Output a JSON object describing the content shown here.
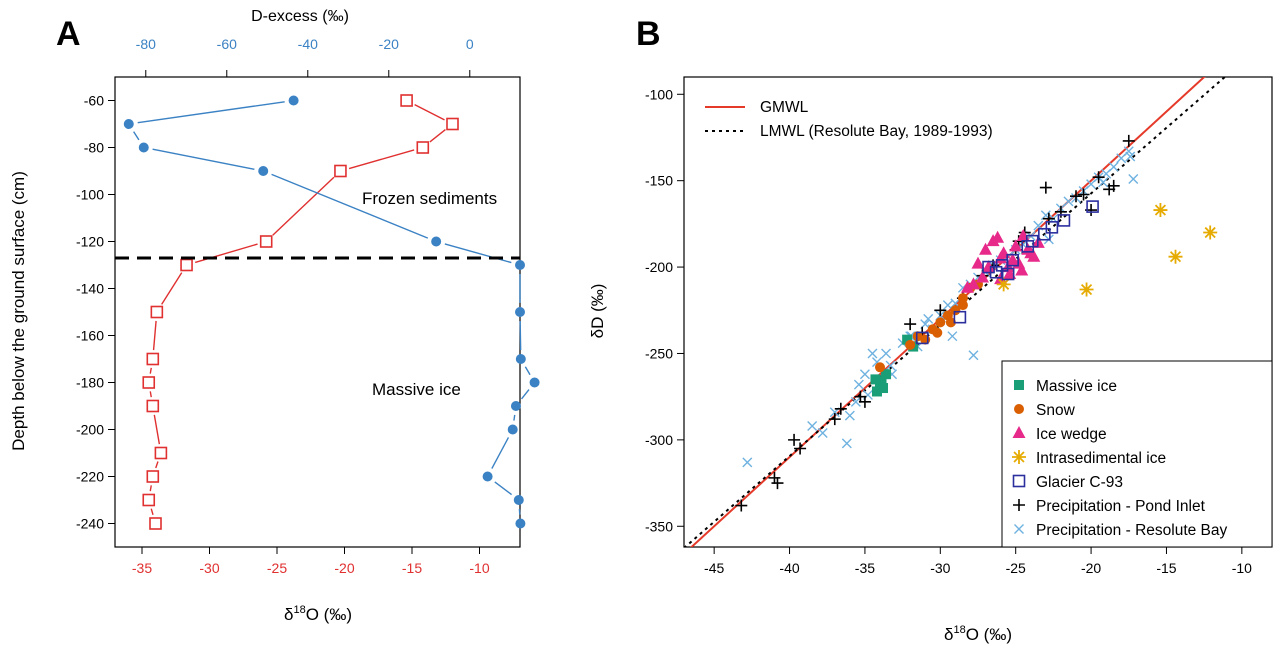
{
  "chart_data": [
    {
      "panel": "A",
      "type": "line",
      "ylabel": "Depth below the ground surface (cm)",
      "xlabel_bottom": "δ18O (‰)",
      "xlabel_top": "D-excess (‰)",
      "ylim": [
        -250,
        -50
      ],
      "xlim_bottom": [
        -37,
        -7
      ],
      "xlim_top": [
        -87.6,
        12.4
      ],
      "y_ticks": [
        -60,
        -80,
        -100,
        -120,
        -140,
        -160,
        -180,
        -200,
        -220,
        -240
      ],
      "y_tick_labels": [
        "-60",
        "-80",
        "-100",
        "-120",
        "-140",
        "-160",
        "-180",
        "-200",
        "-220",
        "-240"
      ],
      "x_bottom_ticks": [
        -35,
        -30,
        -25,
        -20,
        -15,
        -10
      ],
      "x_bottom_tick_labels": [
        "-35",
        "-30",
        "-25",
        "-20",
        "-15",
        "-10"
      ],
      "x_top_ticks": [
        -80,
        -60,
        -40,
        -20,
        0
      ],
      "x_top_tick_labels": [
        "-80",
        "-60",
        "-40",
        "-20",
        "0"
      ],
      "series": [
        {
          "axis": "bottom",
          "color": "#e03030",
          "marker": "open-square",
          "x": [
            -15.4,
            -12.0,
            -14.2,
            -20.3,
            -25.8,
            -31.7,
            -33.9,
            -34.2,
            -34.5,
            -34.2,
            -33.6,
            -34.2,
            -34.5,
            -34.0
          ],
          "y": [
            -60,
            -70,
            -80,
            -90,
            -120,
            -130,
            -150,
            -170,
            -180,
            -190,
            -210,
            -220,
            -230,
            -240
          ]
        },
        {
          "axis": "top",
          "color": "#3b82c4",
          "marker": "filled-circle",
          "x": [
            -43.5,
            -84.2,
            -80.5,
            -51.0,
            -8.3,
            12.4,
            12.4,
            12.6,
            16.0,
            11.4,
            10.6,
            4.4,
            12.1,
            12.5
          ],
          "y": [
            -60,
            -70,
            -80,
            -90,
            -120,
            -130,
            -150,
            -170,
            -180,
            -190,
            -200,
            -220,
            -230,
            -240
          ]
        }
      ],
      "annotations": [
        "Frozen sediments",
        "Massive ice"
      ],
      "hline_y": -127
    },
    {
      "panel": "B",
      "type": "scatter",
      "xlabel": "δ18O (‰)",
      "ylabel": "δD (‰)",
      "xlim": [
        -47,
        -8
      ],
      "ylim": [
        -362,
        -90
      ],
      "x_ticks": [
        -45,
        -40,
        -35,
        -30,
        -25,
        -20,
        -15,
        -10
      ],
      "x_tick_labels": [
        "-45",
        "-40",
        "-35",
        "-30",
        "-25",
        "-20",
        "-15",
        "-10"
      ],
      "y_ticks": [
        -100,
        -150,
        -200,
        -250,
        -300,
        -350
      ],
      "y_tick_labels": [
        "-100",
        "-150",
        "-200",
        "-250",
        "-300",
        "-350"
      ],
      "lines": [
        {
          "name": "GMWL",
          "slope": 8,
          "intercept": 10,
          "color": "#e53a2a",
          "style": "solid"
        },
        {
          "name": "LMWL (Resolute Bay, 1989-1993)",
          "slope": 7.6,
          "intercept": -5.4,
          "color": "#000000",
          "style": "dotted"
        }
      ],
      "legend_top_position": "top-left",
      "legend_bottom_position": "bottom-right",
      "series": [
        {
          "name": "Massive ice",
          "marker": "filled-square",
          "color": "#1a9e77",
          "x": [
            -34.3,
            -34.0,
            -33.8,
            -34.2,
            -33.6,
            -33.9,
            -31.8,
            -32.2
          ],
          "y": [
            -265,
            -268,
            -270,
            -272,
            -262,
            -266,
            -246,
            -242
          ]
        },
        {
          "name": "Snow",
          "marker": "filled-circle",
          "color": "#d95f02",
          "x": [
            -34.0,
            -32.0,
            -31.5,
            -30.5,
            -30.0,
            -29.5,
            -29.0,
            -28.5,
            -28.0,
            -28.5,
            -29.3,
            -27.5,
            -30.2,
            -31.0
          ],
          "y": [
            -258,
            -245,
            -240,
            -236,
            -232,
            -228,
            -225,
            -222,
            -212,
            -218,
            -232,
            -210,
            -238,
            -242
          ]
        },
        {
          "name": "Ice wedge",
          "marker": "filled-triangle",
          "color": "#e7298a",
          "x": [
            -27.5,
            -27.0,
            -26.5,
            -26.0,
            -25.5,
            -25.0,
            -24.5,
            -24.0,
            -23.5,
            -27.2,
            -26.8,
            -25.8,
            -25.2,
            -24.6,
            -24.2,
            -26.2,
            -27.8,
            -28.2,
            -26.0,
            -25.4,
            -24.8,
            -23.8
          ],
          "y": [
            -198,
            -190,
            -185,
            -195,
            -200,
            -188,
            -182,
            -192,
            -186,
            -206,
            -200,
            -192,
            -196,
            -202,
            -190,
            -183,
            -210,
            -212,
            -207,
            -204,
            -198,
            -194
          ]
        },
        {
          "name": "Intrasedimental ice",
          "marker": "asterisk",
          "color": "#e6ab02",
          "x": [
            -15.4,
            -12.1,
            -14.4,
            -20.3,
            -25.8
          ],
          "y": [
            -167,
            -180,
            -194,
            -213,
            -210
          ]
        },
        {
          "name": "Glacier C-93",
          "marker": "open-square",
          "color": "#2b2f9e",
          "x": [
            -31.2,
            -28.7,
            -26.3,
            -25.5,
            -25.9,
            -23.1,
            -22.6,
            -21.8,
            -19.9,
            -26.8,
            -25.2,
            -24.2,
            -23.9
          ],
          "y": [
            -241,
            -229,
            -203,
            -204,
            -199,
            -181,
            -177,
            -173,
            -165,
            -200,
            -196,
            -188,
            -185
          ]
        },
        {
          "name": "Precipitation - Pond Inlet",
          "marker": "plus",
          "color": "#000000",
          "x": [
            -43.2,
            -41.0,
            -40.8,
            -39.7,
            -39.3,
            -37.0,
            -36.6,
            -35.3,
            -35.0,
            -32.0,
            -31.2,
            -30.0,
            -28.5,
            -27.2,
            -26.5,
            -25.0,
            -24.8,
            -24.4,
            -23.0,
            -22.8,
            -22.0,
            -21.0,
            -20.5,
            -20.0,
            -19.5,
            -18.8,
            -18.5,
            -17.5
          ],
          "y": [
            -338,
            -322,
            -325,
            -300,
            -305,
            -288,
            -282,
            -275,
            -278,
            -233,
            -238,
            -225,
            -218,
            -205,
            -199,
            -190,
            -185,
            -180,
            -154,
            -172,
            -168,
            -159,
            -158,
            -167,
            -148,
            -155,
            -153,
            -127
          ]
        },
        {
          "name": "Precipitation - Resolute Bay",
          "marker": "cross",
          "color": "#6fb2e0",
          "x": [
            -42.8,
            -38.5,
            -37.8,
            -37.0,
            -36.2,
            -35.6,
            -35.4,
            -35.0,
            -34.5,
            -34.2,
            -33.6,
            -33.3,
            -32.5,
            -32.0,
            -31.5,
            -31.0,
            -30.5,
            -30.0,
            -29.5,
            -29.0,
            -28.5,
            -28.0,
            -27.5,
            -27.0,
            -26.5,
            -26.0,
            -25.5,
            -25.0,
            -24.5,
            -24.0,
            -23.5,
            -23.0,
            -22.5,
            -22.0,
            -21.5,
            -21.0,
            -20.5,
            -20.0,
            -19.5,
            -19.0,
            -18.5,
            -18.0,
            -17.5,
            -17.2,
            -17.4,
            -27.8,
            -29.2,
            -31.9,
            -33.2,
            -34.8,
            -36.0,
            -30.8,
            -22.8,
            -19.2
          ],
          "y": [
            -313,
            -292,
            -296,
            -284,
            -302,
            -278,
            -268,
            -262,
            -250,
            -255,
            -250,
            -257,
            -244,
            -240,
            -246,
            -233,
            -236,
            -228,
            -222,
            -221,
            -212,
            -210,
            -206,
            -203,
            -199,
            -196,
            -194,
            -190,
            -187,
            -182,
            -176,
            -170,
            -172,
            -166,
            -162,
            -160,
            -156,
            -152,
            -148,
            -146,
            -142,
            -137,
            -133,
            -149,
            -136,
            -251,
            -240,
            -240,
            -262,
            -274,
            -286,
            -230,
            -184,
            -151
          ]
        }
      ]
    }
  ],
  "panel_a": {
    "label": "A",
    "ylabel": "Depth below the ground surface (cm)",
    "xlabel_prefix": "δ",
    "xlabel_sup": "18",
    "xlabel_suffix": "O (‰)",
    "xlabel_top": "D-excess (‰)",
    "annotation_frozen": "Frozen sediments",
    "annotation_massive": "Massive ice",
    "color_red": "#e03030",
    "color_blue": "#3b82c4"
  },
  "panel_b": {
    "label": "B",
    "xlabel_prefix": "δ",
    "xlabel_sup": "18",
    "xlabel_suffix": "O (‰)",
    "ylabel": "δD (‰)",
    "legend_top": [
      "GMWL",
      "LMWL (Resolute Bay, 1989-1993)"
    ],
    "legend_bottom": [
      "Massive ice",
      "Snow",
      "Ice wedge",
      "Intrasedimental ice",
      "Glacier C-93",
      "Precipitation - Pond Inlet",
      "Precipitation - Resolute Bay"
    ]
  }
}
